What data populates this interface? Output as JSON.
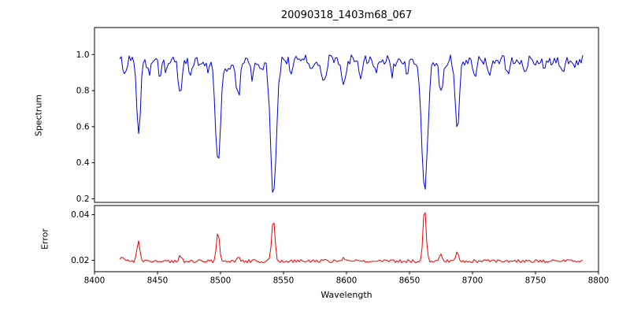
{
  "chart_data": {
    "type": "line",
    "title": "20090318_1403m68_067",
    "xlabel": "Wavelength",
    "xlim": [
      8400,
      8800
    ],
    "xticks": [
      8400,
      8450,
      8500,
      8550,
      8600,
      8650,
      8700,
      8750,
      8800
    ],
    "xtick_labels": [
      "8400",
      "8450",
      "8500",
      "8550",
      "8600",
      "8650",
      "8700",
      "8750",
      "8800"
    ],
    "x_data_range": [
      8420,
      8788
    ],
    "sample_step": 1.25,
    "noise_seed": 20090318,
    "grid": false,
    "legend": "none",
    "panels": [
      {
        "name": "spectrum",
        "ylabel": "Spectrum",
        "color": "#0000dd",
        "ylim": [
          0.18,
          1.15
        ],
        "yticks": [
          0.2,
          0.4,
          0.6,
          0.8,
          1.0
        ],
        "ytick_labels": [
          "0.2",
          "0.4",
          "0.6",
          "0.8",
          "1.0"
        ],
        "baseline": 0.97,
        "noise_amplitude": 0.031,
        "direction": -1,
        "features": [
          {
            "center": 8424,
            "amplitude": 0.1,
            "sigma": 1.2
          },
          {
            "center": 8435,
            "amplitude": 0.4,
            "sigma": 1.6
          },
          {
            "center": 8443,
            "amplitude": 0.08,
            "sigma": 1.2
          },
          {
            "center": 8452,
            "amplitude": 0.1,
            "sigma": 1.2
          },
          {
            "center": 8457,
            "amplitude": 0.08,
            "sigma": 1.2
          },
          {
            "center": 8468,
            "amplitude": 0.18,
            "sigma": 1.6
          },
          {
            "center": 8476,
            "amplitude": 0.08,
            "sigma": 1.2
          },
          {
            "center": 8490,
            "amplitude": 0.08,
            "sigma": 1.2
          },
          {
            "center": 8498,
            "amplitude": 0.56,
            "sigma": 2.0
          },
          {
            "center": 8506,
            "amplitude": 0.07,
            "sigma": 1.2
          },
          {
            "center": 8514,
            "amplitude": 0.2,
            "sigma": 1.6
          },
          {
            "center": 8525,
            "amplitude": 0.1,
            "sigma": 1.2
          },
          {
            "center": 8533,
            "amplitude": 0.07,
            "sigma": 1.2
          },
          {
            "center": 8542,
            "amplitude": 0.74,
            "sigma": 2.4
          },
          {
            "center": 8556,
            "amplitude": 0.08,
            "sigma": 1.2
          },
          {
            "center": 8572,
            "amplitude": 0.07,
            "sigma": 1.2
          },
          {
            "center": 8582,
            "amplitude": 0.12,
            "sigma": 1.5
          },
          {
            "center": 8598,
            "amplitude": 0.14,
            "sigma": 1.5
          },
          {
            "center": 8611,
            "amplitude": 0.08,
            "sigma": 1.2
          },
          {
            "center": 8623,
            "amplitude": 0.07,
            "sigma": 1.2
          },
          {
            "center": 8636,
            "amplitude": 0.08,
            "sigma": 1.2
          },
          {
            "center": 8648,
            "amplitude": 0.07,
            "sigma": 1.2
          },
          {
            "center": 8662,
            "amplitude": 0.73,
            "sigma": 2.4
          },
          {
            "center": 8675,
            "amplitude": 0.18,
            "sigma": 1.5
          },
          {
            "center": 8688,
            "amplitude": 0.4,
            "sigma": 1.6
          },
          {
            "center": 8702,
            "amplitude": 0.07,
            "sigma": 1.2
          },
          {
            "center": 8713,
            "amplitude": 0.09,
            "sigma": 1.2
          },
          {
            "center": 8728,
            "amplitude": 0.07,
            "sigma": 1.2
          },
          {
            "center": 8742,
            "amplitude": 0.08,
            "sigma": 1.2
          },
          {
            "center": 8757,
            "amplitude": 0.07,
            "sigma": 1.2
          },
          {
            "center": 8772,
            "amplitude": 0.08,
            "sigma": 1.2
          },
          {
            "center": 8781,
            "amplitude": 0.07,
            "sigma": 1.2
          }
        ]
      },
      {
        "name": "error",
        "ylabel": "Error",
        "color": "#ee0000",
        "ylim": [
          0.015,
          0.044
        ],
        "yticks": [
          0.02,
          0.04
        ],
        "ytick_labels": [
          "0.02",
          "0.04"
        ],
        "baseline": 0.0196,
        "noise_amplitude": 0.0007,
        "direction": 1,
        "features": [
          {
            "center": 8420,
            "amplitude": 0.0015,
            "sigma": 4.0
          },
          {
            "center": 8435,
            "amplitude": 0.0085,
            "sigma": 1.2
          },
          {
            "center": 8468,
            "amplitude": 0.002,
            "sigma": 1.2
          },
          {
            "center": 8498,
            "amplitude": 0.013,
            "sigma": 1.2
          },
          {
            "center": 8514,
            "amplitude": 0.002,
            "sigma": 1.2
          },
          {
            "center": 8542,
            "amplitude": 0.0185,
            "sigma": 1.3
          },
          {
            "center": 8582,
            "amplitude": 0.0012,
            "sigma": 1.2
          },
          {
            "center": 8598,
            "amplitude": 0.0012,
            "sigma": 1.2
          },
          {
            "center": 8662,
            "amplitude": 0.024,
            "sigma": 1.2
          },
          {
            "center": 8675,
            "amplitude": 0.003,
            "sigma": 1.2
          },
          {
            "center": 8688,
            "amplitude": 0.004,
            "sigma": 1.2
          }
        ]
      }
    ],
    "layout": {
      "panel_left": 120,
      "panel_right": 760,
      "top_panel_top": 35,
      "top_panel_bottom": 257,
      "bottom_panel_top": 261,
      "bottom_panel_bottom": 345,
      "tick_length": 3.5,
      "axis_color": "#000000"
    }
  }
}
